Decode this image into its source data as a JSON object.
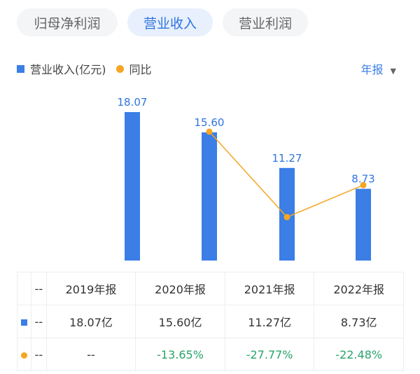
{
  "tabs": [
    {
      "label": "归母净利润"
    },
    {
      "label": "营业收入"
    },
    {
      "label": "营业利润"
    }
  ],
  "legend": {
    "bar": "营业收入(亿元)",
    "line": "同比"
  },
  "period_select": {
    "label": "年报",
    "arrow": "▼"
  },
  "colors": {
    "bar": "#3a7ee6",
    "line": "#f5a623",
    "positive_text": "#2aa46b",
    "accent": "#2f74e0"
  },
  "chart_data": {
    "type": "bar",
    "categories": [
      "2019年报",
      "2020年报",
      "2021年报",
      "2022年报"
    ],
    "series": [
      {
        "name": "营业收入(亿元)",
        "type": "bar",
        "values": [
          18.07,
          15.6,
          11.27,
          8.73
        ],
        "labels": [
          "18.07",
          "15.60",
          "11.27",
          "8.73"
        ]
      },
      {
        "name": "同比",
        "type": "line",
        "values": [
          null,
          -13.65,
          -27.77,
          -22.48
        ]
      }
    ]
  },
  "table": {
    "header": [
      "--",
      "2019年报",
      "2020年报",
      "2021年报",
      "2022年报"
    ],
    "revenue_row": [
      "--",
      "18.07亿",
      "15.60亿",
      "11.27亿",
      "8.73亿"
    ],
    "yoy_row": [
      "--",
      "--",
      "-13.65%",
      "-27.77%",
      "-22.48%"
    ]
  }
}
